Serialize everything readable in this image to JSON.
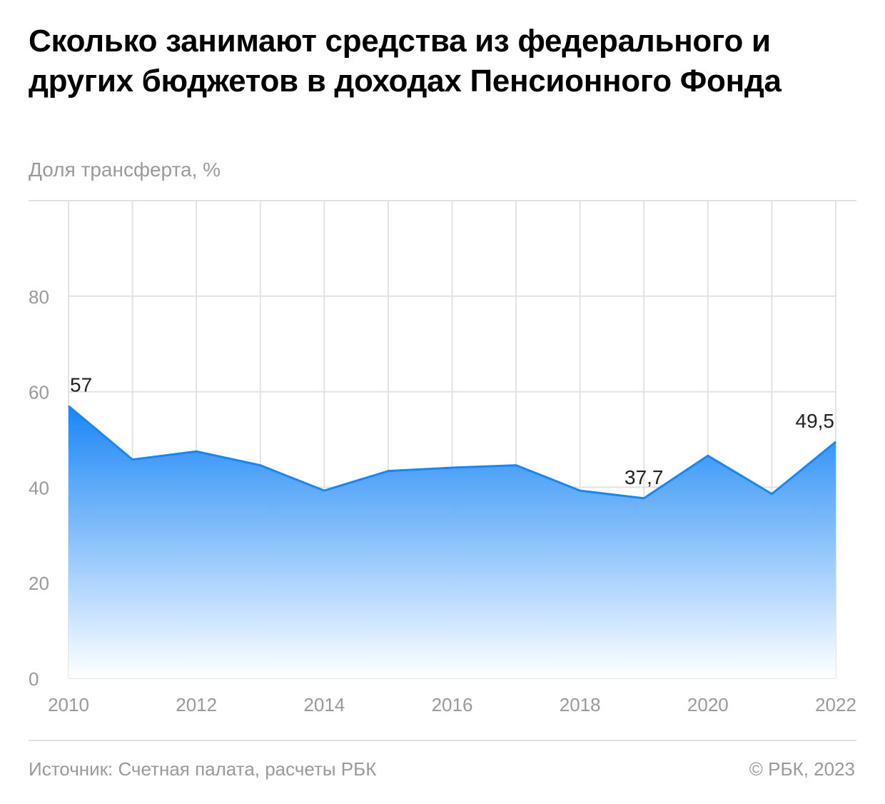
{
  "title": "Сколько занимают средства из федерального и других бюджетов в доходах Пенсионного Фонда",
  "subtitle": "Доля трансферта, %",
  "source": "Источник: Счетная палата, расчеты РБК",
  "copyright": "© РБК, 2023",
  "colors": {
    "line": "#1a86f5",
    "fill_top": "#1a86f5",
    "fill_bottom": "#ffffff",
    "grid": "#e2e2e2",
    "tick": "#9a9a9a"
  },
  "chart_data": {
    "type": "area",
    "x": [
      2010,
      2011,
      2012,
      2013,
      2014,
      2015,
      2016,
      2017,
      2018,
      2019,
      2020,
      2021,
      2022
    ],
    "values": [
      57,
      45.8,
      47.5,
      44.6,
      39.3,
      43.4,
      44.1,
      44.6,
      39.3,
      37.7,
      46.6,
      38.6,
      49.5
    ],
    "xlim": [
      2010,
      2022
    ],
    "ylim": [
      0,
      100
    ],
    "yticks": [
      0,
      20,
      40,
      60,
      80
    ],
    "xticks": [
      2010,
      2012,
      2014,
      2016,
      2018,
      2020,
      2022
    ],
    "annotations": [
      {
        "x": 2010,
        "label": "57"
      },
      {
        "x": 2019,
        "label": "37,7"
      },
      {
        "x": 2022,
        "label": "49,5"
      }
    ],
    "grid": true
  }
}
